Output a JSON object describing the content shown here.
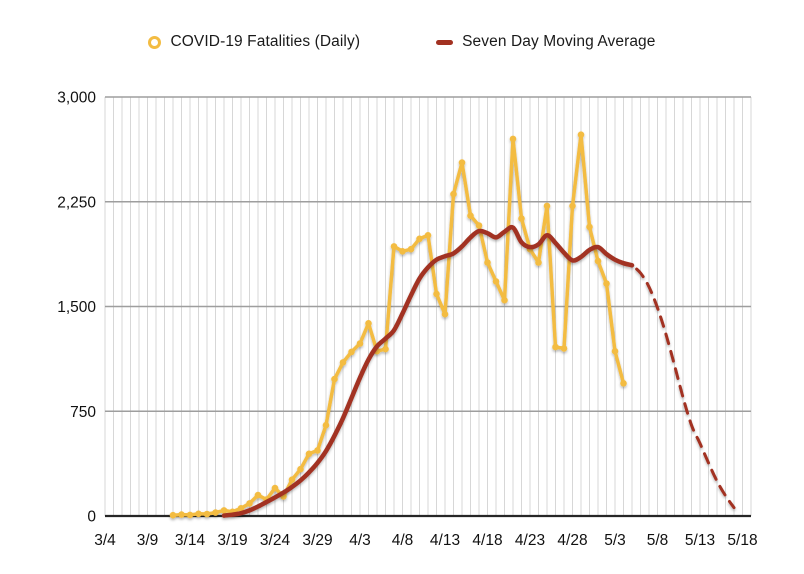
{
  "chart_data": {
    "type": "line",
    "title": "",
    "x_axis": {
      "domain": [
        "3/4",
        "5/19"
      ],
      "tick_labels": [
        "3/4",
        "3/9",
        "3/14",
        "3/19",
        "3/24",
        "3/29",
        "4/3",
        "4/8",
        "4/13",
        "4/18",
        "4/23",
        "4/28",
        "5/3",
        "5/8",
        "5/13",
        "5/18"
      ],
      "days_per_tick": 5,
      "minor_gridline_every_days": 1
    },
    "y_axis": {
      "max": 3000,
      "min": 0,
      "ticks": [
        {
          "value": 0,
          "label": "0"
        },
        {
          "value": 750,
          "label": "750"
        },
        {
          "value": 1500,
          "label": "1,500"
        },
        {
          "value": 2250,
          "label": "2,250"
        },
        {
          "value": 3000,
          "label": "3,000"
        }
      ]
    },
    "grid": {
      "minor_vertical_color": "#d7d7d7",
      "major_horizontal_color": "#9e9e9e",
      "axis_color": "#262626",
      "legend_position": "top-center",
      "gridlines": true
    },
    "series": [
      {
        "name": "COVID-19 Fatalities (Daily)",
        "type": "line",
        "markers": "filled-circle",
        "color": "#F3BC42",
        "points": [
          [
            "3/12",
            6
          ],
          [
            "3/13",
            10
          ],
          [
            "3/14",
            8
          ],
          [
            "3/15",
            16
          ],
          [
            "3/16",
            14
          ],
          [
            "3/17",
            24
          ],
          [
            "3/18",
            40
          ],
          [
            "3/19",
            30
          ],
          [
            "3/20",
            55
          ],
          [
            "3/21",
            90
          ],
          [
            "3/22",
            150
          ],
          [
            "3/23",
            118
          ],
          [
            "3/24",
            200
          ],
          [
            "3/25",
            140
          ],
          [
            "3/26",
            260
          ],
          [
            "3/27",
            335
          ],
          [
            "3/28",
            445
          ],
          [
            "3/29",
            470
          ],
          [
            "3/30",
            650
          ],
          [
            "3/31",
            980
          ],
          [
            "4/1",
            1100
          ],
          [
            "4/2",
            1175
          ],
          [
            "4/3",
            1235
          ],
          [
            "4/4",
            1380
          ],
          [
            "4/5",
            1180
          ],
          [
            "4/6",
            1195
          ],
          [
            "4/7",
            1930
          ],
          [
            "4/8",
            1895
          ],
          [
            "4/9",
            1910
          ],
          [
            "4/10",
            1985
          ],
          [
            "4/11",
            2010
          ],
          [
            "4/12",
            1590
          ],
          [
            "4/13",
            1445
          ],
          [
            "4/14",
            2305
          ],
          [
            "4/15",
            2530
          ],
          [
            "4/16",
            2150
          ],
          [
            "4/17",
            2080
          ],
          [
            "4/18",
            1815
          ],
          [
            "4/19",
            1680
          ],
          [
            "4/20",
            1545
          ],
          [
            "4/21",
            2700
          ],
          [
            "4/22",
            2130
          ],
          [
            "4/23",
            1910
          ],
          [
            "4/24",
            1815
          ],
          [
            "4/25",
            2220
          ],
          [
            "4/26",
            1210
          ],
          [
            "4/27",
            1200
          ],
          [
            "4/28",
            2220
          ],
          [
            "4/29",
            2730
          ],
          [
            "4/30",
            2070
          ],
          [
            "5/1",
            1825
          ],
          [
            "5/2",
            1665
          ],
          [
            "5/3",
            1180
          ],
          [
            "5/4",
            950
          ]
        ]
      },
      {
        "name": "Seven Day Moving Average",
        "type": "line",
        "markers": "none",
        "color": "#A23121",
        "points": [
          [
            "3/18",
            3
          ],
          [
            "3/19",
            9
          ],
          [
            "3/20",
            20
          ],
          [
            "3/21",
            40
          ],
          [
            "3/22",
            68
          ],
          [
            "3/23",
            100
          ],
          [
            "3/24",
            133
          ],
          [
            "3/25",
            168
          ],
          [
            "3/26",
            208
          ],
          [
            "3/27",
            255
          ],
          [
            "3/28",
            312
          ],
          [
            "3/29",
            380
          ],
          [
            "3/30",
            465
          ],
          [
            "3/31",
            575
          ],
          [
            "4/1",
            700
          ],
          [
            "4/2",
            845
          ],
          [
            "4/3",
            990
          ],
          [
            "4/4",
            1120
          ],
          [
            "4/5",
            1215
          ],
          [
            "4/6",
            1270
          ],
          [
            "4/7",
            1330
          ],
          [
            "4/8",
            1450
          ],
          [
            "4/9",
            1580
          ],
          [
            "4/10",
            1700
          ],
          [
            "4/11",
            1780
          ],
          [
            "4/12",
            1835
          ],
          [
            "4/13",
            1860
          ],
          [
            "4/14",
            1880
          ],
          [
            "4/15",
            1930
          ],
          [
            "4/16",
            1995
          ],
          [
            "4/17",
            2040
          ],
          [
            "4/18",
            2025
          ],
          [
            "4/19",
            1995
          ],
          [
            "4/20",
            2035
          ],
          [
            "4/21",
            2065
          ],
          [
            "4/22",
            1960
          ],
          [
            "4/23",
            1925
          ],
          [
            "4/24",
            1945
          ],
          [
            "4/25",
            2010
          ],
          [
            "4/26",
            1955
          ],
          [
            "4/27",
            1885
          ],
          [
            "4/28",
            1830
          ],
          [
            "4/29",
            1855
          ],
          [
            "4/30",
            1905
          ],
          [
            "5/1",
            1925
          ],
          [
            "5/2",
            1875
          ],
          [
            "5/3",
            1835
          ],
          [
            "5/4",
            1810
          ],
          [
            "5/5",
            1795
          ]
        ]
      },
      {
        "name": "Seven Day Moving Average (projection)",
        "type": "dashed-line",
        "markers": "none",
        "color": "#A23121",
        "points": [
          [
            "5/5",
            1795
          ],
          [
            "5/6",
            1740
          ],
          [
            "5/7",
            1640
          ],
          [
            "5/8",
            1490
          ],
          [
            "5/9",
            1300
          ],
          [
            "5/10",
            1080
          ],
          [
            "5/11",
            850
          ],
          [
            "5/12",
            650
          ],
          [
            "5/13",
            520
          ],
          [
            "5/14",
            380
          ],
          [
            "5/15",
            250
          ],
          [
            "5/16",
            145
          ],
          [
            "5/17",
            60
          ]
        ]
      }
    ]
  }
}
